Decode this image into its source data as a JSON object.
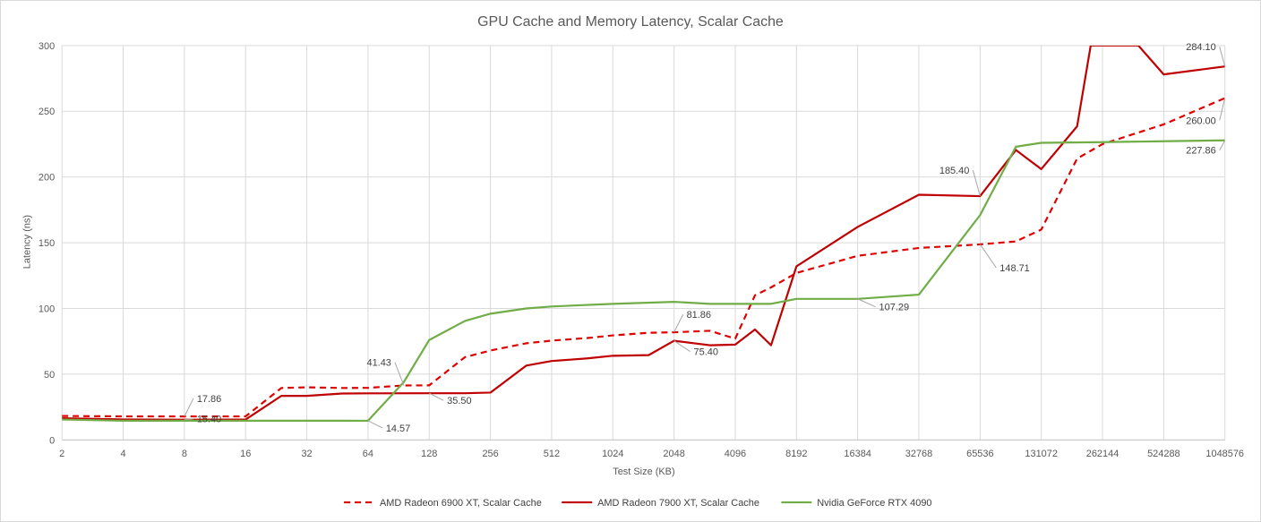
{
  "chart_data": {
    "type": "line",
    "title": "GPU Cache and Memory Latency, Scalar Cache",
    "xlabel": "Test Size (KB)",
    "ylabel": "Latency (ns)",
    "xscale": "log2",
    "x_ticks": [
      "2",
      "4",
      "8",
      "16",
      "32",
      "64",
      "128",
      "256",
      "512",
      "1024",
      "2048",
      "4096",
      "8192",
      "16384",
      "32768",
      "65536",
      "131072",
      "262144",
      "524288",
      "1048576"
    ],
    "ylim": [
      0,
      300
    ],
    "y_ticks": [
      0,
      50,
      100,
      150,
      200,
      250,
      300
    ],
    "grid": true,
    "legend_position": "bottom",
    "series": [
      {
        "name": "AMD Radeon 6900 XT, Scalar Cache",
        "color": "#e00000",
        "dash": "dashed",
        "points": [
          [
            2,
            18.2
          ],
          [
            4,
            17.9
          ],
          [
            8,
            17.86
          ],
          [
            16,
            17.9
          ],
          [
            24,
            39.5
          ],
          [
            32,
            40.0
          ],
          [
            48,
            39.5
          ],
          [
            64,
            39.6
          ],
          [
            96,
            41.43
          ],
          [
            128,
            41.5
          ],
          [
            192,
            63.0
          ],
          [
            256,
            68.0
          ],
          [
            384,
            73.5
          ],
          [
            512,
            75.5
          ],
          [
            768,
            77.5
          ],
          [
            1024,
            79.5
          ],
          [
            1536,
            81.5
          ],
          [
            2048,
            81.86
          ],
          [
            3072,
            83.0
          ],
          [
            4096,
            77.0
          ],
          [
            5120,
            110.0
          ],
          [
            6144,
            116.0
          ],
          [
            8192,
            127.0
          ],
          [
            16384,
            140.0
          ],
          [
            32768,
            146.0
          ],
          [
            65536,
            148.71
          ],
          [
            98304,
            151.0
          ],
          [
            131072,
            160.0
          ],
          [
            196608,
            214.0
          ],
          [
            262144,
            225.0
          ],
          [
            524288,
            240.0
          ],
          [
            1048576,
            260.0
          ]
        ]
      },
      {
        "name": "AMD Radeon 7900 XT, Scalar Cache",
        "color": "#c00000",
        "dash": "solid",
        "points": [
          [
            2,
            16.5
          ],
          [
            4,
            15.6
          ],
          [
            8,
            15.4
          ],
          [
            16,
            15.5
          ],
          [
            24,
            33.5
          ],
          [
            32,
            33.5
          ],
          [
            48,
            35.3
          ],
          [
            64,
            35.4
          ],
          [
            128,
            35.5
          ],
          [
            192,
            35.5
          ],
          [
            256,
            36.0
          ],
          [
            384,
            56.5
          ],
          [
            512,
            60.0
          ],
          [
            768,
            62.0
          ],
          [
            1024,
            64.0
          ],
          [
            1536,
            64.5
          ],
          [
            2048,
            75.4
          ],
          [
            3072,
            72.0
          ],
          [
            4096,
            72.5
          ],
          [
            5120,
            84.0
          ],
          [
            6144,
            72.0
          ],
          [
            8192,
            132.0
          ],
          [
            16384,
            162.0
          ],
          [
            32768,
            186.5
          ],
          [
            65536,
            185.4
          ],
          [
            98304,
            220.5
          ],
          [
            131072,
            206.0
          ],
          [
            196608,
            238.5
          ],
          [
            229376,
            300.0
          ],
          [
            393216,
            300.0
          ],
          [
            524288,
            278.0
          ],
          [
            1048576,
            284.1
          ]
        ]
      },
      {
        "name": "Nvidia GeForce RTX 4090",
        "color": "#70ad47",
        "dash": "solid",
        "points": [
          [
            2,
            15.5
          ],
          [
            4,
            14.6
          ],
          [
            8,
            14.6
          ],
          [
            16,
            14.6
          ],
          [
            32,
            14.6
          ],
          [
            64,
            14.57
          ],
          [
            96,
            44.0
          ],
          [
            128,
            76.0
          ],
          [
            192,
            90.5
          ],
          [
            256,
            96.0
          ],
          [
            384,
            100.0
          ],
          [
            512,
            101.5
          ],
          [
            1024,
            103.5
          ],
          [
            2048,
            105.0
          ],
          [
            3072,
            103.5
          ],
          [
            4096,
            103.5
          ],
          [
            6144,
            103.5
          ],
          [
            8192,
            107.29
          ],
          [
            16384,
            107.29
          ],
          [
            32768,
            110.5
          ],
          [
            65536,
            171.0
          ],
          [
            98304,
            223.0
          ],
          [
            131072,
            226.0
          ],
          [
            262144,
            226.5
          ],
          [
            524288,
            227.2
          ],
          [
            1048576,
            227.86
          ]
        ]
      }
    ],
    "annotations": [
      {
        "text": "17.86",
        "series": 0,
        "x": 8,
        "y": 17.86
      },
      {
        "text": "15.40",
        "series": 1,
        "x": 8,
        "y": 15.4
      },
      {
        "text": "41.43",
        "series": 0,
        "x": 96,
        "y": 41.43
      },
      {
        "text": "14.57",
        "series": 2,
        "x": 64,
        "y": 14.57
      },
      {
        "text": "35.50",
        "series": 1,
        "x": 128,
        "y": 35.5
      },
      {
        "text": "81.86",
        "series": 0,
        "x": 2048,
        "y": 81.86
      },
      {
        "text": "75.40",
        "series": 1,
        "x": 2048,
        "y": 75.4
      },
      {
        "text": "107.29",
        "series": 2,
        "x": 16384,
        "y": 107.29
      },
      {
        "text": "185.40",
        "series": 1,
        "x": 65536,
        "y": 185.4
      },
      {
        "text": "148.71",
        "series": 0,
        "x": 65536,
        "y": 148.71
      },
      {
        "text": "284.10",
        "series": 1,
        "x": 1048576,
        "y": 284.1
      },
      {
        "text": "260.00",
        "series": 0,
        "x": 1048576,
        "y": 260.0
      },
      {
        "text": "227.86",
        "series": 2,
        "x": 1048576,
        "y": 227.86
      }
    ]
  }
}
